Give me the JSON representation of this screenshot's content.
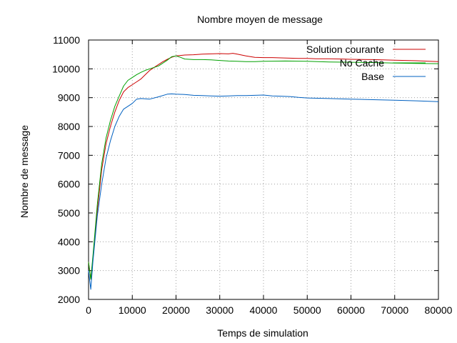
{
  "chart_data": {
    "type": "line",
    "title": "Nombre moyen de message",
    "xlabel": "Temps de simulation",
    "ylabel": "Nombre de message",
    "xlim": [
      0,
      80000
    ],
    "ylim": [
      2000,
      11000
    ],
    "xticks": [
      0,
      10000,
      20000,
      30000,
      40000,
      50000,
      60000,
      70000,
      80000
    ],
    "yticks": [
      2000,
      3000,
      4000,
      5000,
      6000,
      7000,
      8000,
      9000,
      10000,
      11000
    ],
    "grid": true,
    "legend_position": "top-right",
    "series": [
      {
        "name": "Solution courante",
        "color": "#cc0000",
        "x": [
          0,
          500,
          1000,
          2000,
          3000,
          4000,
          5000,
          6000,
          7000,
          8000,
          9000,
          10000,
          11000,
          12000,
          13000,
          14000,
          15000,
          16000,
          17000,
          18000,
          19000,
          20000,
          22000,
          24000,
          26000,
          28000,
          30000,
          32000,
          33000,
          34000,
          36000,
          38000,
          40000,
          42000,
          44000,
          46000,
          48000,
          50000,
          52000,
          55000,
          58000,
          60000,
          65000,
          70000,
          75000,
          80000
        ],
        "y": [
          3300,
          2700,
          3400,
          5100,
          6500,
          7400,
          8000,
          8500,
          8900,
          9200,
          9350,
          9450,
          9550,
          9650,
          9800,
          9950,
          10050,
          10150,
          10250,
          10330,
          10400,
          10450,
          10480,
          10490,
          10510,
          10520,
          10530,
          10520,
          10540,
          10510,
          10450,
          10400,
          10390,
          10390,
          10380,
          10370,
          10360,
          10360,
          10350,
          10350,
          10340,
          10330,
          10320,
          10300,
          10280,
          10250
        ]
      },
      {
        "name": "No Cache",
        "color": "#00a000",
        "x": [
          0,
          500,
          1000,
          2000,
          3000,
          4000,
          5000,
          6000,
          7000,
          8000,
          9000,
          10000,
          11000,
          12000,
          13000,
          14000,
          15000,
          16000,
          17000,
          18000,
          19000,
          20000,
          21000,
          22000,
          24000,
          26000,
          28000,
          30000,
          32000,
          34000,
          36000,
          38000,
          40000,
          45000,
          50000,
          55000,
          60000,
          65000,
          70000,
          75000,
          80000
        ],
        "y": [
          3300,
          2700,
          3500,
          5300,
          6700,
          7600,
          8200,
          8700,
          9050,
          9400,
          9600,
          9700,
          9800,
          9880,
          9950,
          10000,
          10050,
          10100,
          10200,
          10300,
          10420,
          10450,
          10400,
          10340,
          10320,
          10320,
          10310,
          10290,
          10270,
          10260,
          10250,
          10250,
          10260,
          10270,
          10260,
          10240,
          10230,
          10220,
          10200,
          10190,
          10180
        ]
      },
      {
        "name": "Base",
        "color": "#0060c0",
        "x": [
          0,
          500,
          1000,
          2000,
          3000,
          4000,
          5000,
          6000,
          7000,
          8000,
          9000,
          10000,
          11000,
          12000,
          14000,
          16000,
          18000,
          19000,
          20000,
          22000,
          24000,
          26000,
          28000,
          30000,
          32000,
          34000,
          36000,
          38000,
          40000,
          42000,
          44000,
          46000,
          48000,
          50000,
          55000,
          60000,
          65000,
          70000,
          75000,
          80000
        ],
        "y": [
          3000,
          2350,
          3300,
          4900,
          6000,
          6900,
          7500,
          8000,
          8350,
          8600,
          8700,
          8800,
          8950,
          8970,
          8950,
          9030,
          9120,
          9130,
          9120,
          9110,
          9080,
          9070,
          9060,
          9050,
          9060,
          9070,
          9070,
          9080,
          9090,
          9060,
          9050,
          9040,
          9010,
          8990,
          8970,
          8950,
          8930,
          8910,
          8890,
          8860
        ]
      }
    ]
  }
}
